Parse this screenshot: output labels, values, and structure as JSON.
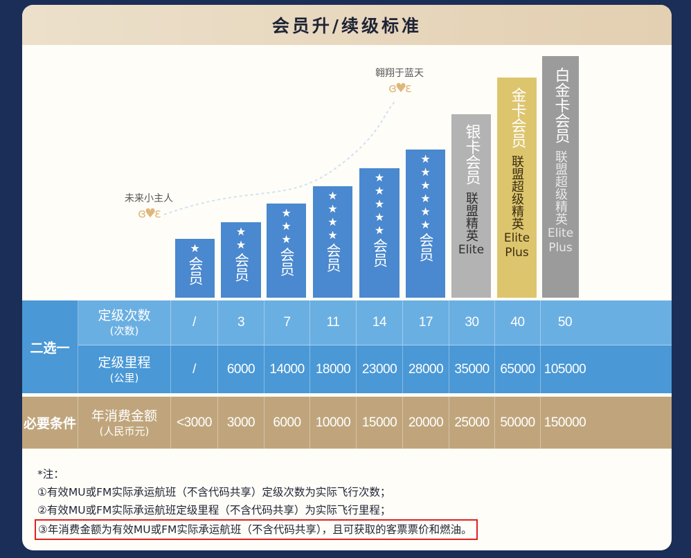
{
  "header": {
    "title": "会员升/续级标准"
  },
  "wings": {
    "left_label": "未来小主人",
    "right_label": "翱翔于蓝天"
  },
  "tiers": [
    {
      "stars": "★",
      "label": "会员"
    },
    {
      "stars": "★★",
      "label": "会员"
    },
    {
      "stars": "★★★",
      "label": "会员"
    },
    {
      "stars": "★★★★",
      "label": "会员"
    },
    {
      "stars": "★★★★★",
      "label": "会员"
    },
    {
      "stars": "★★★★★★",
      "label": "会员"
    },
    {
      "label": "银卡会员",
      "sub": "联盟精英",
      "eng": [
        "Elite"
      ]
    },
    {
      "label": "金卡会员",
      "sub": "联盟超级精英",
      "eng": [
        "Elite",
        "Plus"
      ]
    },
    {
      "label": "白金卡会员",
      "sub": "联盟超级精英",
      "eng": [
        "Elite",
        "Plus"
      ]
    }
  ],
  "table": {
    "group_either": "二选一",
    "group_required": "必要条件",
    "row_segments": {
      "main": "定级次数",
      "sub": "(次数)",
      "values": [
        "/",
        "3",
        "7",
        "11",
        "14",
        "17",
        "30",
        "40",
        "50"
      ]
    },
    "row_miles": {
      "main": "定级里程",
      "sub": "(公里)",
      "values": [
        "/",
        "6000",
        "14000",
        "18000",
        "23000",
        "28000",
        "35000",
        "65000",
        "105000"
      ]
    },
    "row_spend": {
      "main": "年消费金额",
      "sub": "(人民币元)",
      "values": [
        "<3000",
        "3000",
        "6000",
        "10000",
        "15000",
        "20000",
        "25000",
        "50000",
        "150000"
      ]
    }
  },
  "notes": {
    "title": "*注：",
    "n1": "①有效MU或FM实际承运航班（不含代码共享）定级次数为实际飞行次数；",
    "n2": "②有效MU或FM实际承运航班定级里程（不含代码共享）为实际飞行里程；",
    "n3": "③年消费金额为有效MU或FM实际承运航班（不含代码共享），且可获取的客票票价和燃油。"
  },
  "colors": {
    "blue_bar": "#4a88cf",
    "blue_row": "#5ba4dc",
    "gold_row": "#c0a57c",
    "silver": "#b3b3b3",
    "gold": "#ddc56e",
    "platinum": "#9b9b9b"
  }
}
